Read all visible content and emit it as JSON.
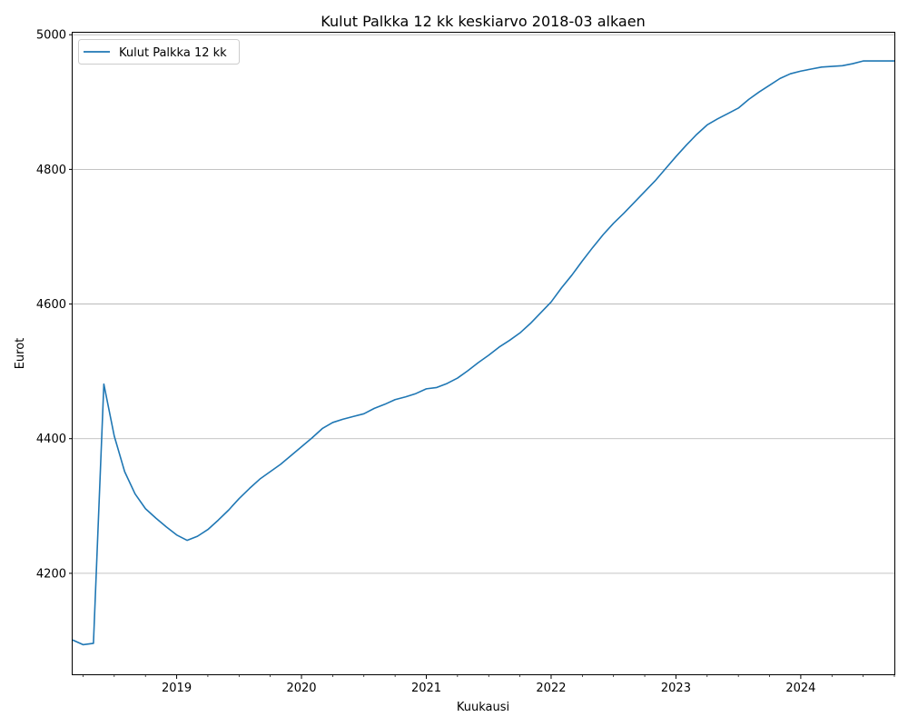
{
  "chart_data": {
    "type": "line",
    "title": "Kulut Palkka 12 kk keskiarvo 2018-03 alkaen",
    "xlabel": "Kuukausi",
    "ylabel": "Eurot",
    "xlim": [
      "2018-03",
      "2024-10"
    ],
    "ylim": [
      4050,
      5003
    ],
    "x_ticks": [
      "2019",
      "2020",
      "2021",
      "2022",
      "2023",
      "2024"
    ],
    "y_ticks": [
      4200,
      4400,
      4600,
      4800,
      5000
    ],
    "grid": "horizontal",
    "legend_position": "top-left",
    "colors": {
      "series": "#1f77b4",
      "grid": "#b0b0b0"
    },
    "series": [
      {
        "name": "Kulut Palkka 12 kk",
        "x": [
          "2018-03",
          "2018-04",
          "2018-05",
          "2018-06",
          "2018-07",
          "2018-08",
          "2018-09",
          "2018-10",
          "2018-11",
          "2018-12",
          "2019-01",
          "2019-02",
          "2019-03",
          "2019-04",
          "2019-05",
          "2019-06",
          "2019-07",
          "2019-08",
          "2019-09",
          "2019-10",
          "2019-11",
          "2019-12",
          "2020-01",
          "2020-02",
          "2020-03",
          "2020-04",
          "2020-05",
          "2020-06",
          "2020-07",
          "2020-08",
          "2020-09",
          "2020-10",
          "2020-11",
          "2020-12",
          "2021-01",
          "2021-02",
          "2021-03",
          "2021-04",
          "2021-05",
          "2021-06",
          "2021-07",
          "2021-08",
          "2021-09",
          "2021-10",
          "2021-11",
          "2021-12",
          "2022-01",
          "2022-02",
          "2022-03",
          "2022-04",
          "2022-05",
          "2022-06",
          "2022-07",
          "2022-08",
          "2022-09",
          "2022-10",
          "2022-11",
          "2022-12",
          "2023-01",
          "2023-02",
          "2023-03",
          "2023-04",
          "2023-05",
          "2023-06",
          "2023-07",
          "2023-08",
          "2023-09",
          "2023-10",
          "2023-11",
          "2023-12",
          "2024-01",
          "2024-02",
          "2024-03",
          "2024-04",
          "2024-05",
          "2024-06",
          "2024-07",
          "2024-08",
          "2024-09",
          "2024-10"
        ],
        "values": [
          4101,
          4094,
          4096,
          4481,
          4404,
          4351,
          4318,
          4296,
          4282,
          4269,
          4257,
          4249,
          4255,
          4265,
          4279,
          4294,
          4311,
          4326,
          4340,
          4351,
          4362,
          4375,
          4388,
          4401,
          4415,
          4424,
          4429,
          4433,
          4437,
          4445,
          4451,
          4458,
          4462,
          4467,
          4474,
          4476,
          4482,
          4490,
          4501,
          4513,
          4524,
          4536,
          4546,
          4557,
          4571,
          4587,
          4603,
          4624,
          4643,
          4664,
          4684,
          4703,
          4720,
          4735,
          4751,
          4767,
          4783,
          4801,
          4819,
          4836,
          4852,
          4866,
          4875,
          4883,
          4891,
          4904,
          4915,
          4925,
          4935,
          4942,
          4946,
          4949,
          4952,
          4953,
          4954,
          4957,
          4961,
          4961,
          4961,
          4961
        ]
      }
    ]
  }
}
